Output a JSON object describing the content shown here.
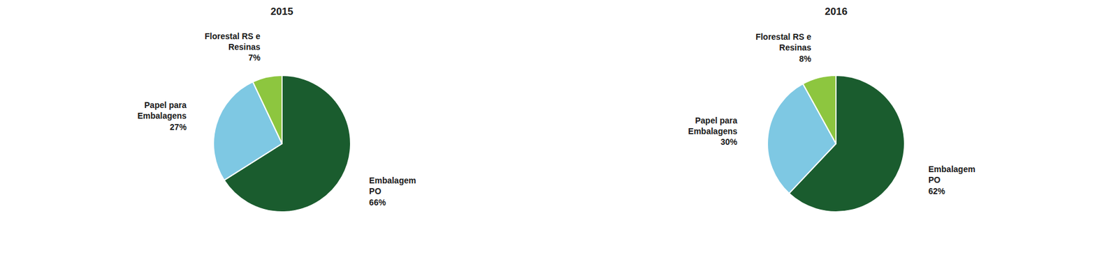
{
  "chart_data": [
    {
      "type": "pie",
      "title": "2015",
      "categories": [
        "Embalagem\nPO",
        "Papel para\nEmbalagens",
        "Florestal RS e\nResinas"
      ],
      "values": [
        66,
        27,
        7
      ],
      "value_labels": [
        "66%",
        "27%",
        "7%"
      ],
      "colors": [
        "#1a5c2e",
        "#7ec8e3",
        "#8dc63f"
      ],
      "data_labels": true
    },
    {
      "type": "pie",
      "title": "2016",
      "categories": [
        "Embalagem\nPO",
        "Papel para\nEmbalagens",
        "Florestal RS e\nResinas"
      ],
      "values": [
        62,
        30,
        8
      ],
      "value_labels": [
        "62%",
        "30%",
        "8%"
      ],
      "colors": [
        "#1a5c2e",
        "#7ec8e3",
        "#8dc63f"
      ],
      "data_labels": true
    }
  ]
}
